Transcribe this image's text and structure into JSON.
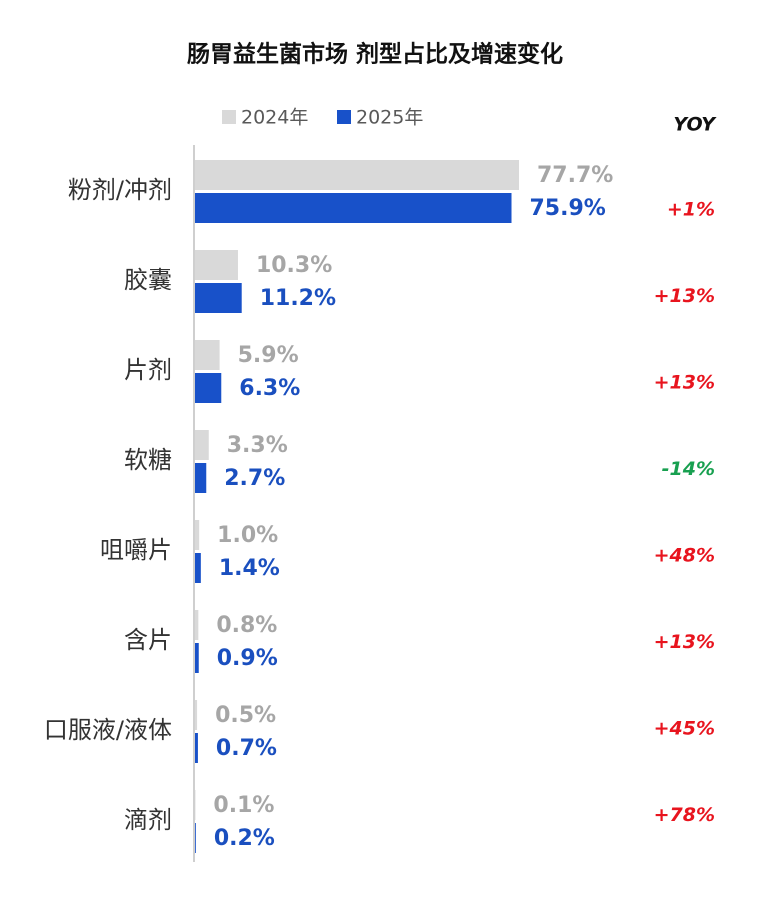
{
  "chart_data": {
    "type": "bar",
    "orientation": "horizontal",
    "title": "肠胃益生菌市场 剂型占比及增速变化",
    "categories": [
      "粉剂/冲剂",
      "胶囊",
      "片剂",
      "软糖",
      "咀嚼片",
      "含片",
      "口服液/液体",
      "滴剂"
    ],
    "series": [
      {
        "name": "2024年",
        "color": "#d9d9d9",
        "label_color": "#a6a6a6",
        "values": [
          77.7,
          10.3,
          5.9,
          3.3,
          1.0,
          0.8,
          0.5,
          0.1
        ],
        "value_labels": [
          "77.7%",
          "10.3%",
          "5.9%",
          "3.3%",
          "1.0%",
          "0.8%",
          "0.5%",
          "0.1%"
        ]
      },
      {
        "name": "2025年",
        "color": "#1851c9",
        "label_color": "#1a4fbf",
        "values": [
          75.9,
          11.2,
          6.3,
          2.7,
          1.4,
          0.9,
          0.7,
          0.2
        ],
        "value_labels": [
          "75.9%",
          "11.2%",
          "6.3%",
          "2.7%",
          "1.4%",
          "0.9%",
          "0.7%",
          "0.2%"
        ]
      }
    ],
    "yoy": {
      "title": "YOY",
      "positive_color": "#e8141e",
      "negative_color": "#18a050",
      "values": [
        1,
        13,
        13,
        -14,
        48,
        13,
        45,
        78
      ],
      "value_labels": [
        "+1%",
        "+13%",
        "+13%",
        "-14%",
        "+48%",
        "+13%",
        "+45%",
        "+78%"
      ]
    },
    "legend": "top"
  }
}
